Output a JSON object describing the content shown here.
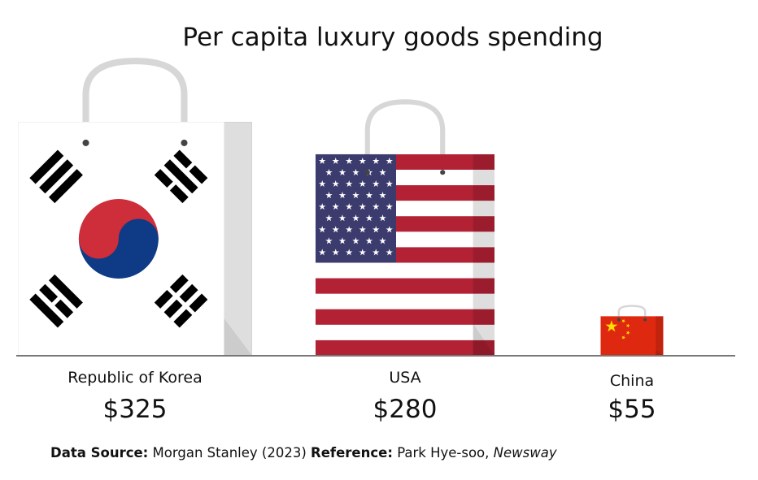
{
  "chart_data": {
    "type": "bar",
    "title": "Per capita luxury goods spending",
    "categories": [
      "Republic of Korea",
      "USA",
      "China"
    ],
    "values": [
      325,
      280,
      55
    ],
    "value_labels": [
      "$325",
      "$280",
      "$55"
    ],
    "series": [
      {
        "values": [
          325,
          280,
          55
        ]
      }
    ],
    "xlabel": "",
    "ylabel": "",
    "grid": false,
    "bar_style": "shopping-bag-flags",
    "colors": {
      "baseline": "#777777",
      "korea_red": "#cd2e3a",
      "korea_blue": "#0f3a85",
      "us_red": "#b22234",
      "us_blue": "#3c3b6e",
      "china_red": "#de2910",
      "china_yellow": "#ffde00",
      "bag_side": "#dedede"
    }
  },
  "footer": {
    "source_label": "Data Source:",
    "source_text": "Morgan Stanley (2023)",
    "reference_label": "Reference:",
    "reference_text": "Park Hye-soo,",
    "publication": "Newsway"
  }
}
